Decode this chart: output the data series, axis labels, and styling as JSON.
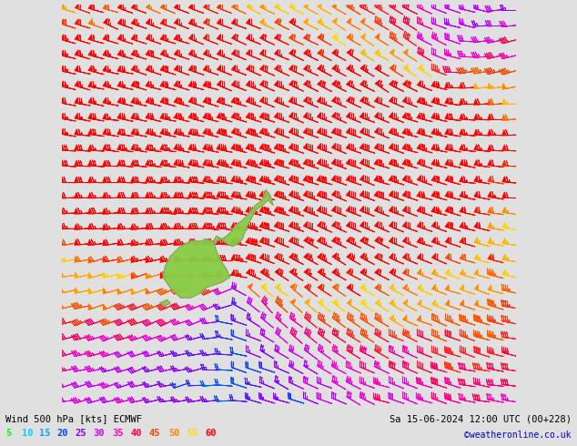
{
  "title_left": "Wind 500 hPa [kts] ECMWF",
  "title_right": "Sa 15-06-2024 12:00 UTC (00+228)",
  "credit": "©weatheronline.co.uk",
  "legend_values": [
    5,
    10,
    15,
    20,
    25,
    30,
    35,
    40,
    45,
    50,
    55,
    60
  ],
  "legend_colors": [
    "#00ff00",
    "#00ccff",
    "#00aaff",
    "#0044ff",
    "#8800ff",
    "#cc00ff",
    "#ff00cc",
    "#ff0044",
    "#ff4400",
    "#ff8800",
    "#ffdd00",
    "#ff0000"
  ],
  "background_color": "#e0e0e0",
  "figsize": [
    6.34,
    4.9
  ],
  "dpi": 100,
  "land_color": "#88cc44",
  "nx": 32,
  "ny": 26,
  "lon_min": 158,
  "lon_max": 202,
  "lat_min": -57,
  "lat_max": -18
}
